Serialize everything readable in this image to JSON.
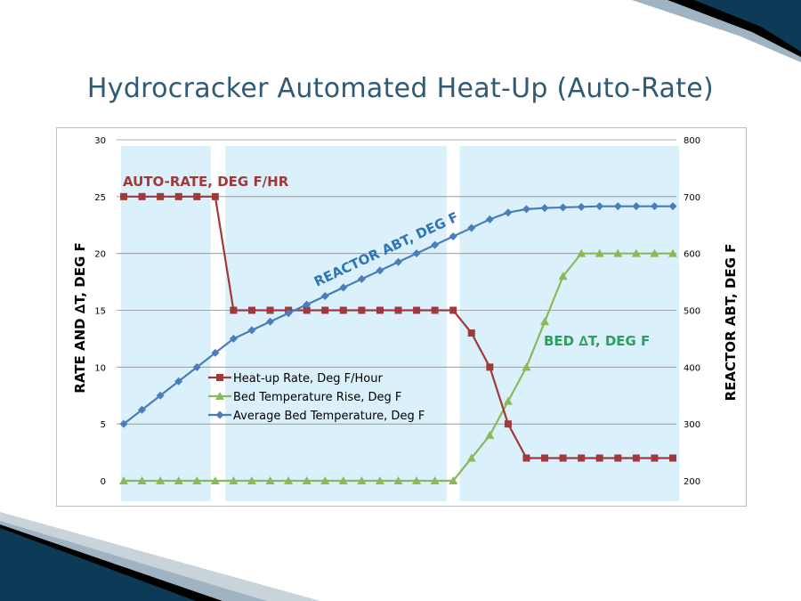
{
  "slide": {
    "title": "Hydrocracker Automated Heat-Up (Auto-Rate)"
  },
  "theme": {
    "accent_dark": "#0d3b57",
    "accent_light": "#8fa7b7"
  },
  "chart_data": {
    "type": "line",
    "title": "Hydrocracker Automated Heat-Up (Auto-Rate)",
    "ylabel": "RATE  AND  ∆T, DEG F",
    "y2label": "REACTOR  ABT, DEG F",
    "ylim": [
      0,
      30
    ],
    "y2lim": [
      200,
      800
    ],
    "yticks": [
      0,
      5,
      10,
      15,
      20,
      25,
      30
    ],
    "y2ticks": [
      200,
      300,
      400,
      500,
      600,
      700,
      800
    ],
    "grid": true,
    "legend_position": "center-left",
    "x": [
      1,
      2,
      3,
      4,
      5,
      6,
      7,
      8,
      9,
      10,
      11,
      12,
      13,
      14,
      15,
      16,
      17,
      18,
      19,
      20,
      21,
      22,
      23,
      24,
      25,
      26,
      27,
      28,
      29,
      30,
      31
    ],
    "series": [
      {
        "name": "Heat-up Rate, Deg F/Hour",
        "axis": "left",
        "color": "#a0393a",
        "marker": "square",
        "values": [
          25,
          25,
          25,
          25,
          25,
          25,
          15,
          15,
          15,
          15,
          15,
          15,
          15,
          15,
          15,
          15,
          15,
          15,
          15,
          13,
          10,
          5,
          2,
          2,
          2,
          2,
          2,
          2,
          2,
          2,
          2
        ]
      },
      {
        "name": "Bed Temperature Rise, Deg F",
        "axis": "left",
        "color": "#8ab95a",
        "marker": "triangle",
        "values": [
          0,
          0,
          0,
          0,
          0,
          0,
          0,
          0,
          0,
          0,
          0,
          0,
          0,
          0,
          0,
          0,
          0,
          0,
          0,
          2,
          4,
          7,
          10,
          14,
          18,
          20,
          20,
          20,
          20,
          20,
          20
        ]
      },
      {
        "name": "Average Bed Temperature, Deg F",
        "axis": "right",
        "color": "#4a7ebb",
        "marker": "diamond",
        "values": [
          300,
          325,
          350,
          375,
          400,
          425,
          450,
          465,
          480,
          495,
          510,
          525,
          540,
          555,
          570,
          585,
          600,
          615,
          630,
          645,
          660,
          672,
          678,
          680,
          681,
          682,
          683,
          683,
          683,
          683,
          683
        ]
      }
    ],
    "annotations": [
      {
        "text": "AUTO-RATE, DEG F/HR",
        "color": "#a0393a"
      },
      {
        "text": "REACTOR ABT, DEG F",
        "color": "#2f74b5"
      },
      {
        "text": "BED ∆T, DEG F",
        "color": "#2e9e5e"
      }
    ],
    "shaded_bands_x": [
      [
        1,
        5.6
      ],
      [
        6.7,
        18.5
      ],
      [
        19.5,
        31.2
      ]
    ]
  }
}
